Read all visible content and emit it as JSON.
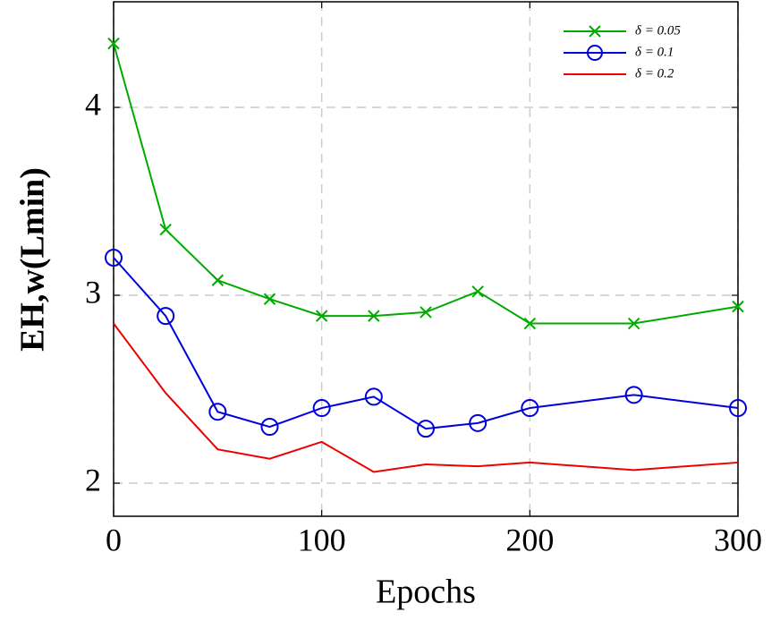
{
  "chart_data": {
    "type": "line",
    "x_label": "Epochs",
    "y_label": "EH,w(Lmin)",
    "x": [
      0,
      25,
      50,
      75,
      100,
      125,
      150,
      175,
      200,
      250,
      300
    ],
    "series": [
      {
        "name": "δ = 0.05",
        "color": "#00aa00",
        "marker": "x",
        "values": [
          4.34,
          3.35,
          3.08,
          2.98,
          2.89,
          2.89,
          2.91,
          3.02,
          2.85,
          2.85,
          2.94
        ]
      },
      {
        "name": "δ = 0.1",
        "color": "#0000dd",
        "marker": "circle",
        "values": [
          3.2,
          2.89,
          2.38,
          2.3,
          2.4,
          2.46,
          2.29,
          2.32,
          2.4,
          2.47,
          2.4
        ]
      },
      {
        "name": "δ = 0.2",
        "color": "#ee0000",
        "marker": "none",
        "values": [
          2.85,
          2.48,
          2.18,
          2.13,
          2.22,
          2.06,
          2.1,
          2.09,
          2.11,
          2.07,
          2.11
        ]
      }
    ],
    "xlim": [
      0,
      300
    ],
    "xticks": [
      0,
      100,
      200,
      300
    ],
    "ylim": [
      1.824,
      4.562
    ],
    "yticks": [
      2,
      3,
      4
    ],
    "grid": true,
    "legend": "top-right"
  }
}
